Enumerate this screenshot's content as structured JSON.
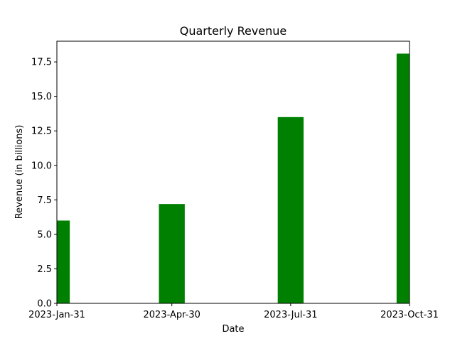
{
  "chart_data": {
    "type": "bar",
    "title": "Quarterly Revenue",
    "xlabel": "Date",
    "ylabel": "Revenue (in billions)",
    "x": [
      "2023-01-31",
      "2023-04-30",
      "2023-07-31",
      "2023-10-31"
    ],
    "x_tick_labels": [
      "2023-Jan-31",
      "2023-Apr-30",
      "2023-Jul-31",
      "2023-Oct-31"
    ],
    "values": [
      6.0,
      7.2,
      13.5,
      18.1
    ],
    "xlim": [
      "2023-01-31",
      "2023-10-31"
    ],
    "ylim": [
      0,
      19
    ],
    "y_ticks": [
      0.0,
      2.5,
      5.0,
      7.5,
      10.0,
      12.5,
      15.0,
      17.5
    ],
    "y_tick_labels": [
      "0.0",
      "2.5",
      "5.0",
      "7.5",
      "10.0",
      "12.5",
      "15.0",
      "17.5"
    ],
    "bar_color": "#008000",
    "grid": false,
    "legend": "none"
  }
}
